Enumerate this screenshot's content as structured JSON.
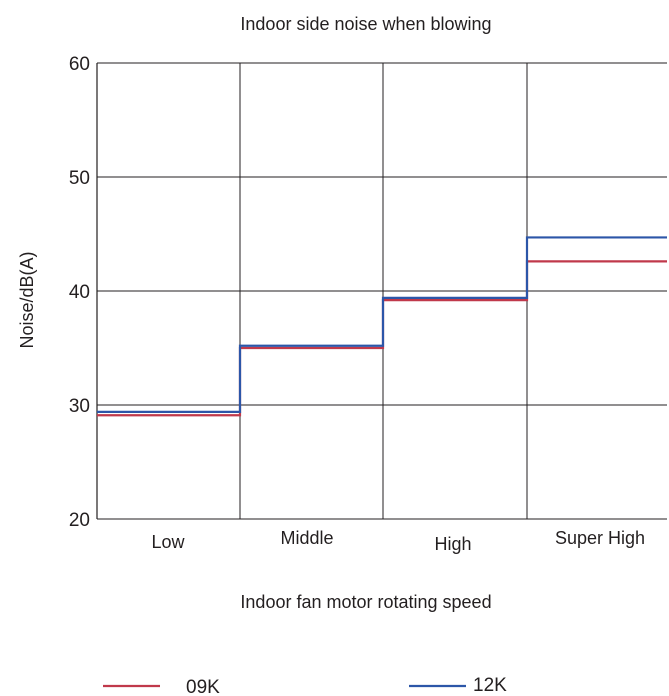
{
  "chart_data": {
    "type": "line",
    "step": true,
    "title": "Indoor side noise when blowing",
    "xlabel": "Indoor fan motor rotating speed",
    "ylabel": "Noise/dB(A)",
    "categories": [
      "Low",
      "Middle",
      "High",
      "Super High"
    ],
    "ylim": [
      20,
      60
    ],
    "yticks": [
      20,
      30,
      40,
      50,
      60
    ],
    "grid": true,
    "legend_position": "bottom",
    "series": [
      {
        "name": "09K",
        "color": "#c0394b",
        "values": [
          29.1,
          35.0,
          39.2,
          42.6
        ]
      },
      {
        "name": "12K",
        "color": "#2c56a8",
        "values": [
          29.4,
          35.2,
          39.4,
          44.7
        ]
      }
    ]
  }
}
